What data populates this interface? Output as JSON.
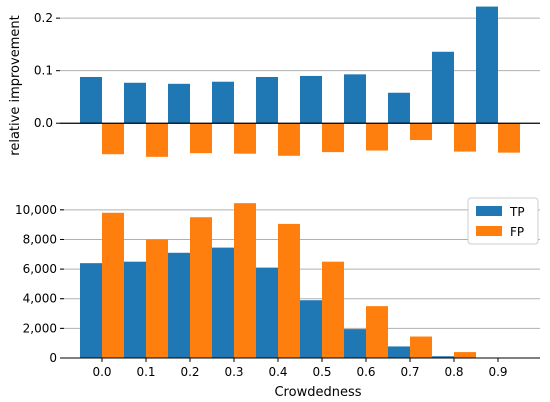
{
  "colors": {
    "tp": "#1f77b4",
    "fp": "#ff7f0e",
    "grid": "#b0b0b0",
    "axis": "#000000"
  },
  "chart_data": [
    {
      "type": "bar",
      "ylabel": "relative improvement",
      "xlabel": "",
      "ylim": [
        -0.07,
        0.225
      ],
      "yticks": [
        0.0,
        0.1,
        0.2
      ],
      "ytick_labels": [
        "0.0",
        "0.1",
        "0.2"
      ],
      "grid": true,
      "categories": [
        "0.0",
        "0.1",
        "0.2",
        "0.3",
        "0.4",
        "0.5",
        "0.6",
        "0.7",
        "0.8",
        "0.9"
      ],
      "series": [
        {
          "name": "TP",
          "values": [
            0.088,
            0.077,
            0.075,
            0.079,
            0.088,
            0.09,
            0.093,
            0.058,
            0.136,
            0.222
          ]
        },
        {
          "name": "FP",
          "values": [
            -0.059,
            -0.064,
            -0.057,
            -0.058,
            -0.062,
            -0.055,
            -0.052,
            -0.032,
            -0.054,
            -0.056
          ]
        }
      ]
    },
    {
      "type": "bar",
      "xlabel": "Crowdedness",
      "ylabel": "",
      "ylim": [
        0,
        11000
      ],
      "yticks": [
        0,
        2000,
        4000,
        6000,
        8000,
        10000
      ],
      "ytick_labels": [
        "0",
        "2,000",
        "4,000",
        "6,000",
        "8,000",
        "10,000"
      ],
      "grid": true,
      "legend_position": "top-right",
      "categories": [
        "0.0",
        "0.1",
        "0.2",
        "0.3",
        "0.4",
        "0.5",
        "0.6",
        "0.7",
        "0.8",
        "0.9"
      ],
      "series": [
        {
          "name": "TP",
          "values": [
            6400,
            6500,
            7100,
            7450,
            6100,
            3900,
            1950,
            780,
            120,
            0
          ]
        },
        {
          "name": "FP",
          "values": [
            9800,
            8000,
            9500,
            10450,
            9050,
            6500,
            3500,
            1450,
            400,
            0
          ]
        }
      ]
    }
  ]
}
